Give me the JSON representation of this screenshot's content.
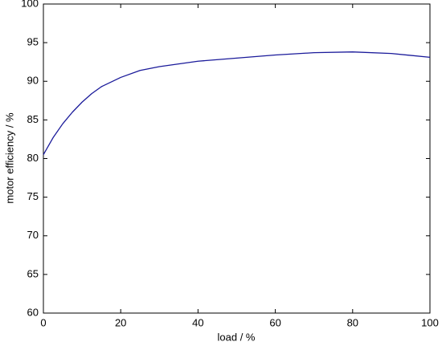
{
  "chart_data": {
    "type": "line",
    "x_label": "load / %",
    "y_label": "motor efficiency / %",
    "x": [
      0,
      2.5,
      5,
      7.5,
      10,
      12.5,
      15,
      20,
      25,
      30,
      40,
      50,
      60,
      70,
      80,
      90,
      100
    ],
    "series": [
      {
        "color": "#1a1a9a",
        "values": [
          80.5,
          82.7,
          84.5,
          86.0,
          87.3,
          88.4,
          89.3,
          90.5,
          91.4,
          91.9,
          92.6,
          93.0,
          93.4,
          93.7,
          93.8,
          93.6,
          93.1
        ]
      }
    ],
    "xlim": [
      0,
      100
    ],
    "xticks": [
      0,
      20,
      40,
      60,
      80,
      100
    ],
    "ylim": [
      60,
      100
    ],
    "yticks": [
      60,
      65,
      70,
      75,
      80,
      85,
      90,
      95,
      100
    ]
  }
}
